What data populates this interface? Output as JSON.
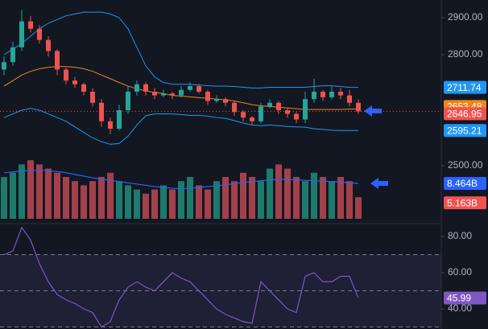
{
  "chart_data": [
    {
      "type": "bar",
      "values": [
        10,
        11,
        13,
        14,
        13,
        12,
        11,
        10,
        9,
        8,
        9,
        10,
        11,
        9,
        8,
        7,
        6,
        7,
        8,
        7,
        9,
        10,
        8,
        7,
        9,
        10,
        9,
        11,
        10,
        9,
        12,
        13,
        12,
        10,
        9,
        11,
        10,
        9,
        10,
        9,
        5.163
      ],
      "value_labels": [
        null,
        null,
        null,
        null,
        null,
        null,
        null,
        null,
        null,
        null,
        null,
        null,
        null,
        null,
        null,
        null,
        null,
        null,
        null,
        null,
        null,
        null,
        null,
        null,
        null,
        null,
        null,
        null,
        null,
        null,
        null,
        null,
        null,
        null,
        null,
        null,
        null,
        null,
        null,
        null,
        "5.163B"
      ],
      "color_up": "#1e7a6d",
      "color_down": "#a3414b",
      "label_color": "#f05350",
      "ylim": [
        0,
        15.77
      ],
      "series": [
        {
          "color": "#2962ff",
          "values": [
            11,
            11.2,
            11.4,
            11.6,
            11.6,
            11.5,
            11.3,
            11,
            10.6,
            10.2,
            9.8,
            9.5,
            9.2,
            8.9,
            8.6,
            8.3,
            8,
            7.7,
            7.5,
            7.3,
            7.2,
            7.3,
            7.5,
            7.7,
            7.9,
            8.1,
            8.4,
            8.7,
            8.9,
            9.1,
            9.3,
            9.4,
            9.4,
            9.3,
            9.2,
            9.1,
            9,
            8.9,
            8.8,
            8.6,
            8.464
          ],
          "value_labels": [
            null,
            null,
            null,
            null,
            null,
            null,
            null,
            null,
            null,
            null,
            null,
            null,
            null,
            null,
            null,
            null,
            null,
            null,
            null,
            null,
            null,
            null,
            null,
            null,
            null,
            null,
            null,
            null,
            null,
            null,
            null,
            null,
            null,
            null,
            null,
            null,
            null,
            null,
            null,
            null,
            "8.464B"
          ]
        }
      ]
    },
    {
      "type": "candlestick",
      "open": [
        2760,
        2780,
        2820,
        2890,
        2870,
        2840,
        2810,
        2760,
        2730,
        2720,
        2700,
        2670,
        2620,
        2600,
        2650,
        2700,
        2720,
        2700,
        2690,
        2695,
        2690,
        2705,
        2715,
        2700,
        2675,
        2680,
        2670,
        2645,
        2630,
        2620,
        2660,
        2670,
        2650,
        2640,
        2625,
        2680,
        2700,
        2685,
        2700,
        2690,
        2670
      ],
      "high": [
        2795,
        2835,
        2920,
        2905,
        2880,
        2850,
        2815,
        2765,
        2740,
        2725,
        2710,
        2680,
        2630,
        2665,
        2715,
        2730,
        2725,
        2710,
        2705,
        2700,
        2715,
        2725,
        2720,
        2705,
        2690,
        2685,
        2675,
        2650,
        2635,
        2670,
        2680,
        2675,
        2655,
        2645,
        2700,
        2735,
        2705,
        2715,
        2710,
        2705,
        2680
      ],
      "low": [
        2745,
        2770,
        2810,
        2860,
        2830,
        2795,
        2745,
        2720,
        2710,
        2690,
        2660,
        2605,
        2585,
        2595,
        2640,
        2690,
        2690,
        2680,
        2685,
        2680,
        2685,
        2700,
        2695,
        2665,
        2670,
        2660,
        2635,
        2620,
        2610,
        2615,
        2655,
        2640,
        2630,
        2615,
        2615,
        2670,
        2675,
        2680,
        2680,
        2660,
        2640
      ],
      "close": [
        2780,
        2820,
        2890,
        2870,
        2840,
        2810,
        2760,
        2730,
        2720,
        2700,
        2670,
        2620,
        2600,
        2650,
        2700,
        2720,
        2700,
        2690,
        2695,
        2690,
        2705,
        2715,
        2700,
        2675,
        2680,
        2670,
        2645,
        2630,
        2620,
        2660,
        2670,
        2650,
        2640,
        2625,
        2680,
        2700,
        2685,
        2700,
        2690,
        2670,
        2646.95
      ],
      "color_up": "#26a69a",
      "color_down": "#ef5350",
      "ylim": [
        2356.5,
        2947.8
      ],
      "yticks": [
        {
          "value": 2900,
          "label": "2900.00"
        },
        {
          "value": 2800,
          "label": "2800.00"
        },
        {
          "value": 2500,
          "label": "2500.00"
        }
      ],
      "series": [
        {
          "color": "#2196f3",
          "values": [
            2800,
            2815,
            2830,
            2850,
            2870,
            2885,
            2895,
            2905,
            2910,
            2915,
            2915,
            2915,
            2910,
            2900,
            2870,
            2820,
            2770,
            2740,
            2725,
            2720,
            2720,
            2720,
            2718,
            2716,
            2715,
            2715,
            2714,
            2712,
            2710,
            2710,
            2712,
            2712,
            2712,
            2712,
            2712,
            2714,
            2716,
            2716,
            2714,
            2712,
            2711.74
          ]
        },
        {
          "color": "#f0861a",
          "values": [
            2715,
            2730,
            2745,
            2755,
            2762,
            2766,
            2768,
            2768,
            2766,
            2762,
            2755,
            2745,
            2735,
            2725,
            2715,
            2708,
            2702,
            2698,
            2695,
            2690,
            2688,
            2686,
            2684,
            2682,
            2680,
            2678,
            2675,
            2670,
            2665,
            2662,
            2660,
            2658,
            2656,
            2654,
            2652,
            2652,
            2652,
            2652,
            2652,
            2653,
            2653.48
          ]
        },
        {
          "color": "#2196f3",
          "values": [
            2630,
            2640,
            2650,
            2655,
            2650,
            2640,
            2630,
            2620,
            2605,
            2590,
            2575,
            2565,
            2558,
            2560,
            2580,
            2610,
            2635,
            2640,
            2640,
            2640,
            2638,
            2636,
            2636,
            2634,
            2630,
            2628,
            2622,
            2615,
            2610,
            2608,
            2610,
            2608,
            2606,
            2605,
            2604,
            2600,
            2598,
            2596,
            2595,
            2595,
            2595.21
          ]
        }
      ]
    },
    {
      "type": "line",
      "values": [
        70,
        72,
        85,
        78,
        65,
        55,
        48,
        45,
        43,
        40,
        38,
        30,
        33,
        45,
        52,
        55,
        52,
        50,
        55,
        60,
        57,
        55,
        50,
        45,
        40,
        37,
        35,
        33,
        32,
        55,
        50,
        45,
        40,
        38,
        58,
        60,
        55,
        55,
        58,
        58,
        45.99
      ],
      "color": "#7e57c2",
      "ylim": [
        28.9,
        84.9
      ],
      "yticks": [
        {
          "value": 80,
          "label": "80.00"
        },
        {
          "value": 60,
          "label": "60.00"
        },
        {
          "value": 40,
          "label": "40.00"
        }
      ],
      "levels": [
        70,
        50,
        30
      ]
    }
  ]
}
